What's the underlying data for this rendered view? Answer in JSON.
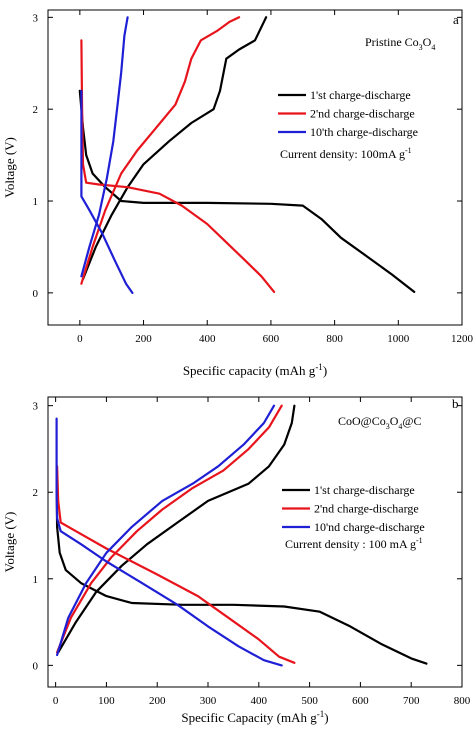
{
  "chart_data": [
    {
      "type": "line",
      "panel_label": "a",
      "title_lines": [
        "Pristine Co",
        "3",
        "O",
        "4"
      ],
      "xlabel": "Specific capacity (mAh g",
      "xlabel_sup": "-1",
      "xlabel_end": ")",
      "ylabel": "Voltage (V)",
      "xlim": [
        -100,
        1200
      ],
      "ylim": [
        -0.35,
        3.08
      ],
      "xticks": [
        0,
        200,
        400,
        600,
        800,
        1000,
        1200
      ],
      "xtick_labels": [
        "0",
        "200",
        "400",
        "600",
        "800",
        "1000",
        "1200"
      ],
      "yticks": [
        0,
        1,
        2,
        3
      ],
      "ytick_labels": [
        "0",
        "1",
        "2",
        "3"
      ],
      "legend": [
        "1'st charge-discharge",
        "2'nd charge-discharge",
        "10'th charge-discharge"
      ],
      "note": "Current density: 100mA g",
      "note_sup": "-1",
      "series": [
        {
          "name": "1'st charge-discharge",
          "color": "#000000",
          "discharge": [
            [
              0,
              2.2
            ],
            [
              5,
              2.0
            ],
            [
              10,
              1.8
            ],
            [
              20,
              1.5
            ],
            [
              40,
              1.3
            ],
            [
              80,
              1.15
            ],
            [
              130,
              1.0
            ],
            [
              200,
              0.98
            ],
            [
              400,
              0.98
            ],
            [
              600,
              0.97
            ],
            [
              700,
              0.95
            ],
            [
              760,
              0.8
            ],
            [
              820,
              0.6
            ],
            [
              900,
              0.4
            ],
            [
              980,
              0.2
            ],
            [
              1050,
              0.01
            ]
          ],
          "charge": [
            [
              10,
              0.15
            ],
            [
              50,
              0.5
            ],
            [
              100,
              0.85
            ],
            [
              150,
              1.15
            ],
            [
              200,
              1.4
            ],
            [
              280,
              1.65
            ],
            [
              350,
              1.85
            ],
            [
              420,
              2.0
            ],
            [
              440,
              2.2
            ],
            [
              460,
              2.55
            ],
            [
              500,
              2.65
            ],
            [
              550,
              2.75
            ],
            [
              585,
              3.0
            ]
          ]
        },
        {
          "name": "2'nd charge-discharge",
          "color": "#e8141c",
          "discharge": [
            [
              5,
              2.75
            ],
            [
              7,
              2.0
            ],
            [
              10,
              1.4
            ],
            [
              20,
              1.2
            ],
            [
              60,
              1.18
            ],
            [
              150,
              1.15
            ],
            [
              250,
              1.08
            ],
            [
              320,
              0.95
            ],
            [
              400,
              0.75
            ],
            [
              460,
              0.55
            ],
            [
              520,
              0.35
            ],
            [
              570,
              0.18
            ],
            [
              610,
              0.01
            ]
          ],
          "charge": [
            [
              5,
              0.1
            ],
            [
              40,
              0.5
            ],
            [
              80,
              0.9
            ],
            [
              130,
              1.3
            ],
            [
              180,
              1.55
            ],
            [
              240,
              1.8
            ],
            [
              300,
              2.05
            ],
            [
              330,
              2.3
            ],
            [
              350,
              2.55
            ],
            [
              380,
              2.75
            ],
            [
              430,
              2.85
            ],
            [
              470,
              2.95
            ],
            [
              500,
              3.0
            ]
          ]
        },
        {
          "name": "10'th charge-discharge",
          "color": "#1f1fd6",
          "discharge": [
            [
              5,
              2.2
            ],
            [
              5,
              1.7
            ],
            [
              5,
              1.35
            ],
            [
              5,
              1.05
            ],
            [
              30,
              0.9
            ],
            [
              70,
              0.65
            ],
            [
              110,
              0.35
            ],
            [
              145,
              0.1
            ],
            [
              165,
              0.0
            ]
          ],
          "charge": [
            [
              5,
              0.18
            ],
            [
              30,
              0.5
            ],
            [
              60,
              0.85
            ],
            [
              85,
              1.25
            ],
            [
              105,
              1.65
            ],
            [
              120,
              2.1
            ],
            [
              130,
              2.4
            ],
            [
              140,
              2.8
            ],
            [
              150,
              3.0
            ]
          ]
        }
      ]
    },
    {
      "type": "line",
      "panel_label": "b",
      "title_lines": [
        "CoO@Co",
        "3",
        "O",
        "4",
        "@C"
      ],
      "xlabel": "Specific Capacity (mAh g",
      "xlabel_sup": "-1",
      "xlabel_end": ")",
      "ylabel": "Voltage (V)",
      "xlim": [
        -15,
        800
      ],
      "ylim": [
        -0.25,
        3.1
      ],
      "xticks": [
        0,
        100,
        200,
        300,
        400,
        500,
        600,
        700,
        800
      ],
      "xtick_labels": [
        "0",
        "100",
        "200",
        "300",
        "400",
        "500",
        "600",
        "700",
        "800"
      ],
      "yticks": [
        0,
        1,
        2,
        3
      ],
      "ytick_labels": [
        "0",
        "1",
        "2",
        "3"
      ],
      "legend": [
        "1'st charge-discharge",
        "2'nd charge-discharge",
        "10'nd charge-discharge"
      ],
      "note": "Current density : 100 mA g",
      "note_sup": "-1",
      "series": [
        {
          "name": "1'st charge-discharge",
          "color": "#000000",
          "discharge": [
            [
              2,
              2.2
            ],
            [
              3,
              1.6
            ],
            [
              8,
              1.3
            ],
            [
              20,
              1.1
            ],
            [
              50,
              0.95
            ],
            [
              100,
              0.8
            ],
            [
              150,
              0.72
            ],
            [
              250,
              0.7
            ],
            [
              350,
              0.7
            ],
            [
              450,
              0.68
            ],
            [
              520,
              0.62
            ],
            [
              580,
              0.45
            ],
            [
              640,
              0.25
            ],
            [
              700,
              0.08
            ],
            [
              730,
              0.02
            ]
          ],
          "charge": [
            [
              5,
              0.15
            ],
            [
              40,
              0.5
            ],
            [
              80,
              0.85
            ],
            [
              130,
              1.15
            ],
            [
              180,
              1.4
            ],
            [
              240,
              1.65
            ],
            [
              300,
              1.9
            ],
            [
              380,
              2.1
            ],
            [
              420,
              2.3
            ],
            [
              450,
              2.55
            ],
            [
              465,
              2.8
            ],
            [
              470,
              3.0
            ]
          ]
        },
        {
          "name": "2'nd charge-discharge",
          "color": "#e8141c",
          "discharge": [
            [
              3,
              2.3
            ],
            [
              5,
              1.9
            ],
            [
              10,
              1.65
            ],
            [
              40,
              1.55
            ],
            [
              100,
              1.35
            ],
            [
              200,
              1.05
            ],
            [
              280,
              0.8
            ],
            [
              340,
              0.55
            ],
            [
              400,
              0.3
            ],
            [
              440,
              0.1
            ],
            [
              470,
              0.03
            ]
          ],
          "charge": [
            [
              3,
              0.15
            ],
            [
              30,
              0.55
            ],
            [
              70,
              0.95
            ],
            [
              110,
              1.25
            ],
            [
              160,
              1.55
            ],
            [
              210,
              1.8
            ],
            [
              270,
              2.05
            ],
            [
              330,
              2.25
            ],
            [
              380,
              2.5
            ],
            [
              420,
              2.75
            ],
            [
              445,
              3.0
            ]
          ]
        },
        {
          "name": "10'nd charge-discharge",
          "color": "#1f1fd6",
          "discharge": [
            [
              2,
              2.85
            ],
            [
              2,
              2.0
            ],
            [
              3,
              1.7
            ],
            [
              10,
              1.55
            ],
            [
              50,
              1.4
            ],
            [
              100,
              1.2
            ],
            [
              170,
              0.95
            ],
            [
              240,
              0.7
            ],
            [
              300,
              0.45
            ],
            [
              360,
              0.22
            ],
            [
              410,
              0.06
            ],
            [
              445,
              0.0
            ]
          ],
          "charge": [
            [
              3,
              0.12
            ],
            [
              25,
              0.55
            ],
            [
              60,
              0.95
            ],
            [
              100,
              1.3
            ],
            [
              150,
              1.6
            ],
            [
              210,
              1.9
            ],
            [
              270,
              2.1
            ],
            [
              320,
              2.3
            ],
            [
              370,
              2.55
            ],
            [
              410,
              2.8
            ],
            [
              430,
              3.0
            ]
          ]
        }
      ]
    }
  ]
}
